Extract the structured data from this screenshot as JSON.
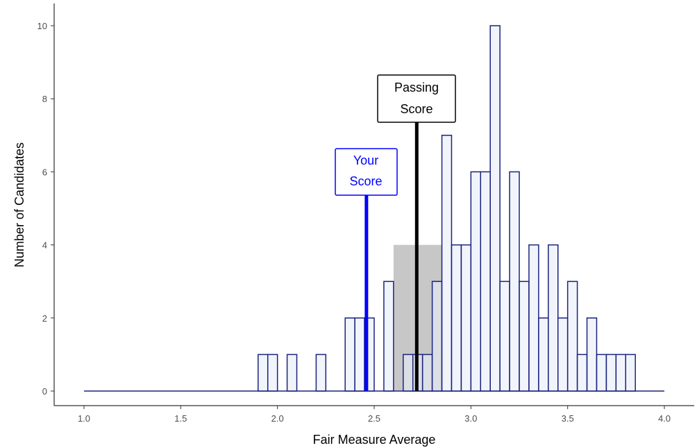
{
  "chart_data": {
    "type": "bar",
    "title": "",
    "xlabel": "Fair Measure Average",
    "ylabel": "Number of Candidates",
    "xlim": [
      1.0,
      4.0
    ],
    "ylim": [
      0,
      10
    ],
    "x_ticks": [
      1.0,
      1.5,
      2.0,
      2.5,
      3.0,
      3.5,
      4.0
    ],
    "x_tick_labels": [
      "1.0",
      "1.5",
      "2.0",
      "2.5",
      "3.0",
      "3.5",
      "4.0"
    ],
    "y_ticks": [
      0,
      2,
      4,
      6,
      8,
      10
    ],
    "y_tick_labels": [
      "0",
      "2",
      "4",
      "6",
      "8",
      "10"
    ],
    "bin_width": 0.05,
    "bin_starts": [
      1.9,
      1.95,
      2.05,
      2.2,
      2.35,
      2.4,
      2.45,
      2.55,
      2.6,
      2.65,
      2.7,
      2.75,
      2.8,
      2.85,
      2.9,
      2.95,
      3.0,
      3.05,
      3.1,
      3.15,
      3.2,
      3.25,
      3.3,
      3.35,
      3.4,
      3.45,
      3.5,
      3.55,
      3.6,
      3.65,
      3.7,
      3.75,
      3.8
    ],
    "values": [
      1,
      1,
      1,
      1,
      2,
      2,
      2,
      3,
      0,
      1,
      1,
      1,
      3,
      7,
      4,
      4,
      6,
      6,
      10,
      3,
      6,
      3,
      4,
      2,
      4,
      2,
      3,
      1,
      2,
      1,
      1,
      1,
      1
    ],
    "shaded_region": {
      "x": [
        2.6,
        2.85
      ],
      "y": 4
    },
    "colors": {
      "bar_fill": "#e8edf7",
      "bar_stroke": "#1a237e",
      "your_score": "#0000ff",
      "passing_score": "#000000",
      "shade": "#bdbdbd"
    },
    "annotations": {
      "your_score": {
        "x": 2.46,
        "line_top": 5.4,
        "label_lines": [
          "Your",
          "Score"
        ]
      },
      "passing_score": {
        "x": 2.72,
        "line_top": 7.4,
        "label_lines": [
          "Passing",
          "Score"
        ]
      }
    }
  }
}
